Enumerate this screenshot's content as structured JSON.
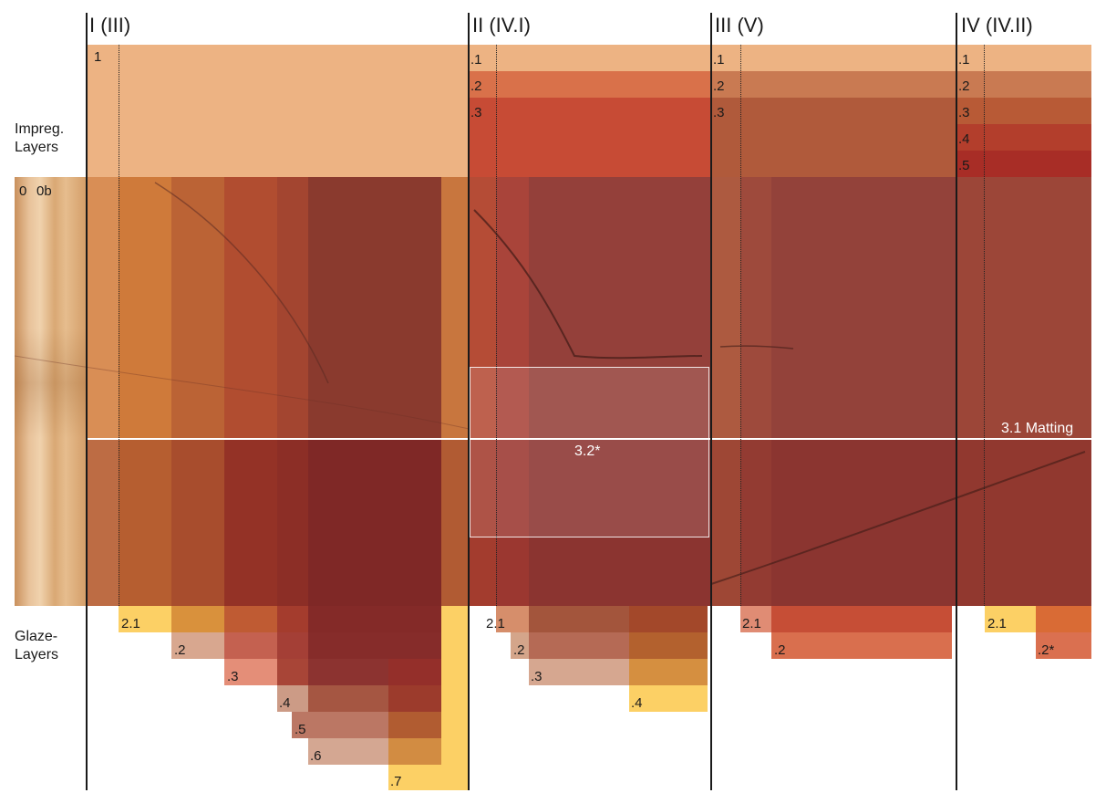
{
  "columns": [
    {
      "label": "I (III)"
    },
    {
      "label": "II (IV.I)"
    },
    {
      "label": "III (V)"
    },
    {
      "label": "IV (IV.II)"
    }
  ],
  "side_labels": {
    "impregnation": "Impreg.\nLayers",
    "glaze": "Glaze-\nLayers"
  },
  "wood_labels": {
    "zero": "0",
    "zero_b": "0b"
  },
  "impregnation_labels": {
    "col1": [
      "1"
    ],
    "col2": [
      ".1",
      ".2",
      ".3"
    ],
    "col3": [
      ".1",
      ".2",
      ".3"
    ],
    "col4": [
      ".1",
      ".2",
      ".3",
      ".4",
      ".5"
    ]
  },
  "glaze_labels": {
    "col1": [
      "2.1",
      ".2",
      ".3",
      ".4",
      ".5",
      ".6",
      ".7"
    ],
    "col2": [
      "2.1",
      ".2",
      ".3",
      ".4"
    ],
    "col3": [
      "2.1",
      ".2"
    ],
    "col4": [
      "2.1",
      ".2*"
    ]
  },
  "annotations": {
    "matting": "3.1 Matting",
    "area_32": "3.2*"
  },
  "colors": {
    "wood": "#d9a070",
    "impreg_base": "#edb383",
    "glaze_yellow": "#fcd065",
    "deep_red": "#7d2425",
    "line": "#1a1a1a"
  }
}
